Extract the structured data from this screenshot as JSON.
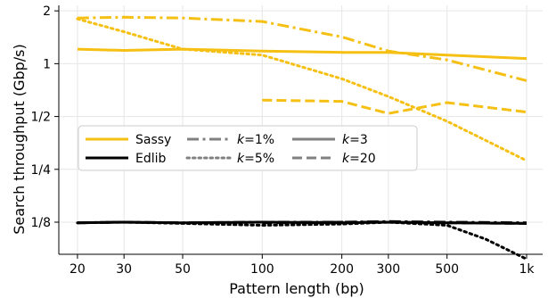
{
  "chart_data": {
    "type": "line",
    "xlabel": "Pattern length (bp)",
    "ylabel": "Search throughput (Gbp/s)",
    "xscale": "log",
    "yscale": "log",
    "xlim": [
      17,
      1150
    ],
    "ylim": [
      0.082,
      2.15
    ],
    "x_ticks": [
      {
        "value": 20,
        "label": "20"
      },
      {
        "value": 30,
        "label": "30"
      },
      {
        "value": 50,
        "label": "50"
      },
      {
        "value": 100,
        "label": "100"
      },
      {
        "value": 200,
        "label": "200"
      },
      {
        "value": 300,
        "label": "300"
      },
      {
        "value": 500,
        "label": "500"
      },
      {
        "value": 1000,
        "label": "1k"
      }
    ],
    "y_ticks": [
      {
        "value": 2,
        "label": "2"
      },
      {
        "value": 1,
        "label": "1"
      },
      {
        "value": 0.5,
        "label": "1/2"
      },
      {
        "value": 0.25,
        "label": "1/4"
      },
      {
        "value": 0.125,
        "label": "1/8"
      }
    ],
    "grid": true,
    "legend_position": "center-left",
    "legend": {
      "tools": [
        {
          "label": "Sassy",
          "color": "#F5C013"
        },
        {
          "label": "Edlib",
          "color": "#000000"
        }
      ],
      "styles": [
        {
          "label": "k=1%",
          "prefix": "k",
          "suffix": "=1%",
          "dash": "dashdot"
        },
        {
          "label": "k=5%",
          "prefix": "k",
          "suffix": "=5%",
          "dash": "dotted"
        },
        {
          "label": "k=3",
          "prefix": "k",
          "suffix": "=3",
          "dash": "solid"
        },
        {
          "label": "k=20",
          "prefix": "k",
          "suffix": "=20",
          "dash": "dashed"
        }
      ],
      "style_color": "#808080"
    },
    "series": [
      {
        "tool": "Sassy",
        "k": "k=1%",
        "color": "#F5C013",
        "dash": "dashdot",
        "x": [
          20,
          30,
          50,
          100,
          200,
          300,
          500,
          1000
        ],
        "y": [
          1.82,
          1.84,
          1.82,
          1.74,
          1.42,
          1.18,
          1.05,
          0.8
        ]
      },
      {
        "tool": "Sassy",
        "k": "k=5%",
        "color": "#F5C013",
        "dash": "dotted",
        "x": [
          20,
          30,
          50,
          100,
          200,
          300,
          500,
          1000
        ],
        "y": [
          1.8,
          1.52,
          1.21,
          1.12,
          0.82,
          0.65,
          0.47,
          0.28
        ]
      },
      {
        "tool": "Sassy",
        "k": "k=3",
        "color": "#F5C013",
        "dash": "solid",
        "x": [
          20,
          30,
          50,
          100,
          200,
          300,
          500,
          1000
        ],
        "y": [
          1.21,
          1.19,
          1.21,
          1.18,
          1.16,
          1.16,
          1.12,
          1.07
        ]
      },
      {
        "tool": "Sassy",
        "k": "k=20",
        "color": "#F5C013",
        "dash": "dashed",
        "x": [
          100,
          200,
          300,
          500,
          1000
        ],
        "y": [
          0.62,
          0.61,
          0.52,
          0.6,
          0.53
        ]
      },
      {
        "tool": "Edlib",
        "k": "k=1%",
        "color": "#000000",
        "dash": "dashdot",
        "x": [
          20,
          30,
          50,
          100,
          200,
          300,
          500,
          1000
        ],
        "y": [
          0.124,
          0.125,
          0.124,
          0.125,
          0.125,
          0.126,
          0.125,
          0.124
        ]
      },
      {
        "tool": "Edlib",
        "k": "k=5%",
        "color": "#000000",
        "dash": "dotted",
        "x": [
          20,
          30,
          50,
          100,
          200,
          300,
          500,
          700,
          1000
        ],
        "y": [
          0.124,
          0.125,
          0.123,
          0.12,
          0.122,
          0.125,
          0.12,
          0.1,
          0.077
        ]
      },
      {
        "tool": "Edlib",
        "k": "k=3",
        "color": "#000000",
        "dash": "solid",
        "x": [
          20,
          30,
          50,
          100,
          200,
          300,
          500,
          1000
        ],
        "y": [
          0.124,
          0.125,
          0.124,
          0.125,
          0.124,
          0.125,
          0.124,
          0.123
        ]
      },
      {
        "tool": "Edlib",
        "k": "k=20",
        "color": "#000000",
        "dash": "dashed",
        "x": [
          100,
          200,
          300,
          500,
          1000
        ],
        "y": [
          0.124,
          0.125,
          0.125,
          0.124,
          0.123
        ]
      }
    ]
  }
}
